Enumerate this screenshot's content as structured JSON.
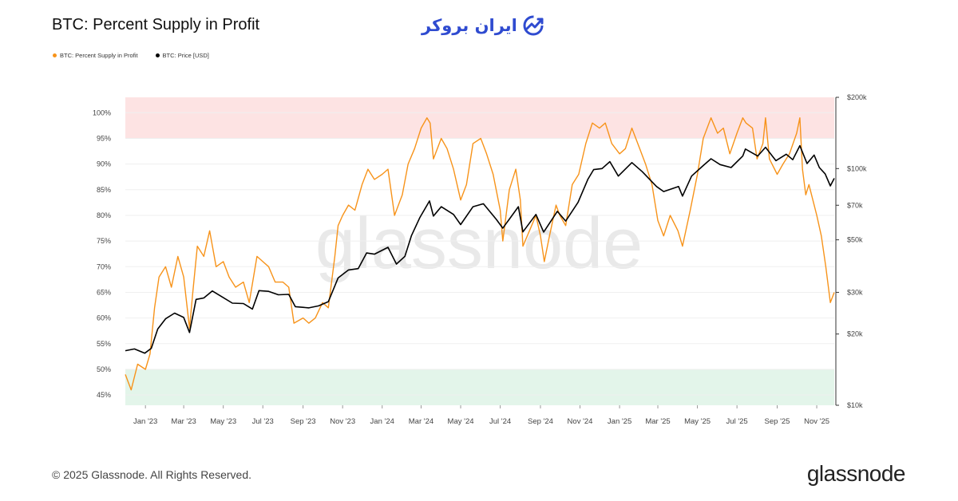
{
  "header": {
    "title": "BTC: Percent Supply in Profit",
    "brand_text": "ایران بروکر"
  },
  "legend": [
    {
      "label": "BTC: Percent Supply in Profit",
      "color": "#f7931a"
    },
    {
      "label": "BTC: Price [USD]",
      "color": "#000000"
    }
  ],
  "watermark": "glassnode",
  "footer": {
    "copyright": "© 2025 Glassnode. All Rights Reserved.",
    "logo_text": "glassnode"
  },
  "chart_data": {
    "type": "line",
    "title": "BTC: Percent Supply in Profit",
    "x_tick_labels": [
      "Jan '23",
      "Mar '23",
      "May '23",
      "Jul '23",
      "Sep '23",
      "Nov '23",
      "Jan '24",
      "Mar '24",
      "May '24",
      "Jul '24",
      "Sep '24",
      "Nov '24",
      "Jan '25",
      "Mar '25",
      "May '25",
      "Jul '25",
      "Sep '25",
      "Nov '25"
    ],
    "x_range": [
      "2022-12-01",
      "2025-11-28"
    ],
    "left_axis": {
      "ticks": [
        45,
        50,
        55,
        60,
        65,
        70,
        75,
        80,
        85,
        90,
        95,
        100
      ],
      "tick_labels": [
        "45%",
        "50%",
        "55%",
        "60%",
        "65%",
        "70%",
        "75%",
        "80%",
        "85%",
        "90%",
        "95%",
        "100%"
      ],
      "range": [
        43,
        103
      ]
    },
    "right_axis": {
      "scale": "log",
      "ticks": [
        10000,
        20000,
        30000,
        50000,
        70000,
        100000,
        200000
      ],
      "tick_labels": [
        "$10k",
        "$20k",
        "$30k",
        "$50k",
        "$70k",
        "$100k",
        "$200k"
      ],
      "range": [
        10000,
        200000
      ]
    },
    "bands": [
      {
        "from": 95,
        "to": 103,
        "color": "#fde3e3"
      },
      {
        "from": 43,
        "to": 50,
        "color": "#e3f5ea"
      }
    ],
    "grid": true,
    "legend_position": "top-left",
    "series": [
      {
        "name": "BTC: Percent Supply in Profit",
        "axis": "left",
        "color": "#f7931a",
        "points": [
          [
            "2022-12-01",
            49
          ],
          [
            "2022-12-10",
            46
          ],
          [
            "2022-12-20",
            51
          ],
          [
            "2023-01-01",
            50
          ],
          [
            "2023-01-08",
            53
          ],
          [
            "2023-01-15",
            62
          ],
          [
            "2023-01-22",
            68
          ],
          [
            "2023-02-01",
            70
          ],
          [
            "2023-02-10",
            66
          ],
          [
            "2023-02-20",
            72
          ],
          [
            "2023-03-01",
            68
          ],
          [
            "2023-03-10",
            58
          ],
          [
            "2023-03-15",
            65
          ],
          [
            "2023-03-22",
            74
          ],
          [
            "2023-04-01",
            72
          ],
          [
            "2023-04-10",
            77
          ],
          [
            "2023-04-20",
            70
          ],
          [
            "2023-05-01",
            71
          ],
          [
            "2023-05-10",
            68
          ],
          [
            "2023-05-20",
            66
          ],
          [
            "2023-06-01",
            67
          ],
          [
            "2023-06-10",
            63
          ],
          [
            "2023-06-22",
            72
          ],
          [
            "2023-07-01",
            71
          ],
          [
            "2023-07-10",
            70
          ],
          [
            "2023-07-20",
            67
          ],
          [
            "2023-08-01",
            67
          ],
          [
            "2023-08-10",
            66
          ],
          [
            "2023-08-18",
            59
          ],
          [
            "2023-09-01",
            60
          ],
          [
            "2023-09-10",
            59
          ],
          [
            "2023-09-20",
            60
          ],
          [
            "2023-10-01",
            63
          ],
          [
            "2023-10-10",
            62
          ],
          [
            "2023-10-20",
            72
          ],
          [
            "2023-10-25",
            78
          ],
          [
            "2023-11-01",
            80
          ],
          [
            "2023-11-10",
            82
          ],
          [
            "2023-11-20",
            81
          ],
          [
            "2023-12-01",
            86
          ],
          [
            "2023-12-10",
            89
          ],
          [
            "2023-12-20",
            87
          ],
          [
            "2024-01-01",
            88
          ],
          [
            "2024-01-10",
            89
          ],
          [
            "2024-01-20",
            80
          ],
          [
            "2024-02-01",
            84
          ],
          [
            "2024-02-10",
            90
          ],
          [
            "2024-02-20",
            93
          ],
          [
            "2024-03-01",
            97
          ],
          [
            "2024-03-10",
            99
          ],
          [
            "2024-03-15",
            98
          ],
          [
            "2024-03-20",
            91
          ],
          [
            "2024-04-01",
            95
          ],
          [
            "2024-04-10",
            93
          ],
          [
            "2024-04-20",
            89
          ],
          [
            "2024-05-01",
            83
          ],
          [
            "2024-05-10",
            86
          ],
          [
            "2024-05-20",
            94
          ],
          [
            "2024-06-01",
            95
          ],
          [
            "2024-06-10",
            92
          ],
          [
            "2024-06-20",
            88
          ],
          [
            "2024-07-01",
            81
          ],
          [
            "2024-07-05",
            75
          ],
          [
            "2024-07-15",
            85
          ],
          [
            "2024-07-25",
            89
          ],
          [
            "2024-08-01",
            83
          ],
          [
            "2024-08-05",
            74
          ],
          [
            "2024-08-15",
            77
          ],
          [
            "2024-08-25",
            80
          ],
          [
            "2024-09-01",
            76
          ],
          [
            "2024-09-07",
            71
          ],
          [
            "2024-09-15",
            76
          ],
          [
            "2024-09-25",
            82
          ],
          [
            "2024-10-01",
            80
          ],
          [
            "2024-10-10",
            78
          ],
          [
            "2024-10-20",
            86
          ],
          [
            "2024-10-30",
            88
          ],
          [
            "2024-11-10",
            94
          ],
          [
            "2024-11-20",
            98
          ],
          [
            "2024-12-01",
            97
          ],
          [
            "2024-12-10",
            98
          ],
          [
            "2024-12-20",
            94
          ],
          [
            "2025-01-01",
            92
          ],
          [
            "2025-01-10",
            93
          ],
          [
            "2025-01-20",
            97
          ],
          [
            "2025-02-01",
            93
          ],
          [
            "2025-02-10",
            90
          ],
          [
            "2025-02-20",
            86
          ],
          [
            "2025-03-01",
            79
          ],
          [
            "2025-03-10",
            76
          ],
          [
            "2025-03-20",
            80
          ],
          [
            "2025-04-01",
            77
          ],
          [
            "2025-04-08",
            74
          ],
          [
            "2025-04-20",
            81
          ],
          [
            "2025-05-01",
            88
          ],
          [
            "2025-05-10",
            95
          ],
          [
            "2025-05-22",
            99
          ],
          [
            "2025-06-01",
            96
          ],
          [
            "2025-06-10",
            97
          ],
          [
            "2025-06-20",
            92
          ],
          [
            "2025-07-01",
            96
          ],
          [
            "2025-07-10",
            99
          ],
          [
            "2025-07-15",
            98
          ],
          [
            "2025-07-25",
            97
          ],
          [
            "2025-08-01",
            91
          ],
          [
            "2025-08-10",
            94
          ],
          [
            "2025-08-14",
            99
          ],
          [
            "2025-08-20",
            91
          ],
          [
            "2025-09-01",
            88
          ],
          [
            "2025-09-10",
            90
          ],
          [
            "2025-09-20",
            92
          ],
          [
            "2025-10-01",
            96
          ],
          [
            "2025-10-06",
            99
          ],
          [
            "2025-10-10",
            89
          ],
          [
            "2025-10-15",
            84
          ],
          [
            "2025-10-20",
            86
          ],
          [
            "2025-11-01",
            80
          ],
          [
            "2025-11-08",
            76
          ],
          [
            "2025-11-15",
            70
          ],
          [
            "2025-11-22",
            63
          ],
          [
            "2025-11-28",
            65
          ]
        ]
      },
      {
        "name": "BTC: Price [USD]",
        "axis": "right",
        "color": "#000000",
        "points": [
          [
            "2022-12-01",
            17000
          ],
          [
            "2022-12-15",
            17300
          ],
          [
            "2022-12-31",
            16600
          ],
          [
            "2023-01-10",
            17400
          ],
          [
            "2023-01-20",
            21000
          ],
          [
            "2023-02-01",
            23200
          ],
          [
            "2023-02-15",
            24500
          ],
          [
            "2023-03-01",
            23500
          ],
          [
            "2023-03-10",
            20300
          ],
          [
            "2023-03-20",
            28000
          ],
          [
            "2023-04-01",
            28400
          ],
          [
            "2023-04-14",
            30400
          ],
          [
            "2023-05-01",
            28500
          ],
          [
            "2023-05-15",
            27000
          ],
          [
            "2023-06-01",
            26900
          ],
          [
            "2023-06-15",
            25500
          ],
          [
            "2023-06-25",
            30500
          ],
          [
            "2023-07-10",
            30300
          ],
          [
            "2023-07-25",
            29300
          ],
          [
            "2023-08-10",
            29400
          ],
          [
            "2023-08-20",
            26100
          ],
          [
            "2023-09-10",
            25800
          ],
          [
            "2023-09-25",
            26300
          ],
          [
            "2023-10-10",
            27400
          ],
          [
            "2023-10-25",
            34500
          ],
          [
            "2023-11-10",
            37300
          ],
          [
            "2023-11-25",
            37800
          ],
          [
            "2023-12-08",
            44000
          ],
          [
            "2023-12-20",
            43500
          ],
          [
            "2024-01-10",
            46500
          ],
          [
            "2024-01-23",
            39500
          ],
          [
            "2024-02-05",
            42600
          ],
          [
            "2024-02-15",
            52000
          ],
          [
            "2024-02-28",
            62000
          ],
          [
            "2024-03-14",
            73000
          ],
          [
            "2024-03-20",
            63000
          ],
          [
            "2024-04-01",
            69000
          ],
          [
            "2024-04-20",
            64000
          ],
          [
            "2024-05-01",
            58000
          ],
          [
            "2024-05-20",
            69000
          ],
          [
            "2024-06-05",
            71000
          ],
          [
            "2024-06-25",
            61000
          ],
          [
            "2024-07-05",
            56000
          ],
          [
            "2024-07-29",
            69000
          ],
          [
            "2024-08-05",
            54000
          ],
          [
            "2024-08-25",
            64000
          ],
          [
            "2024-09-06",
            53900
          ],
          [
            "2024-09-27",
            66000
          ],
          [
            "2024-10-10",
            60000
          ],
          [
            "2024-10-29",
            72000
          ],
          [
            "2024-11-13",
            90000
          ],
          [
            "2024-11-22",
            99000
          ],
          [
            "2024-12-05",
            100000
          ],
          [
            "2024-12-17",
            107000
          ],
          [
            "2024-12-30",
            93000
          ],
          [
            "2025-01-20",
            106000
          ],
          [
            "2025-02-05",
            97000
          ],
          [
            "2025-02-27",
            84000
          ],
          [
            "2025-03-10",
            80000
          ],
          [
            "2025-04-02",
            84000
          ],
          [
            "2025-04-08",
            76500
          ],
          [
            "2025-04-22",
            93000
          ],
          [
            "2025-05-10",
            103000
          ],
          [
            "2025-05-22",
            110000
          ],
          [
            "2025-06-05",
            104000
          ],
          [
            "2025-06-22",
            101000
          ],
          [
            "2025-07-10",
            113000
          ],
          [
            "2025-07-14",
            121000
          ],
          [
            "2025-08-02",
            113000
          ],
          [
            "2025-08-14",
            123000
          ],
          [
            "2025-08-30",
            108000
          ],
          [
            "2025-09-15",
            115000
          ],
          [
            "2025-09-25",
            109000
          ],
          [
            "2025-10-06",
            125000
          ],
          [
            "2025-10-17",
            105000
          ],
          [
            "2025-10-28",
            114000
          ],
          [
            "2025-11-05",
            101000
          ],
          [
            "2025-11-14",
            95000
          ],
          [
            "2025-11-22",
            84500
          ],
          [
            "2025-11-28",
            91000
          ]
        ]
      }
    ]
  }
}
